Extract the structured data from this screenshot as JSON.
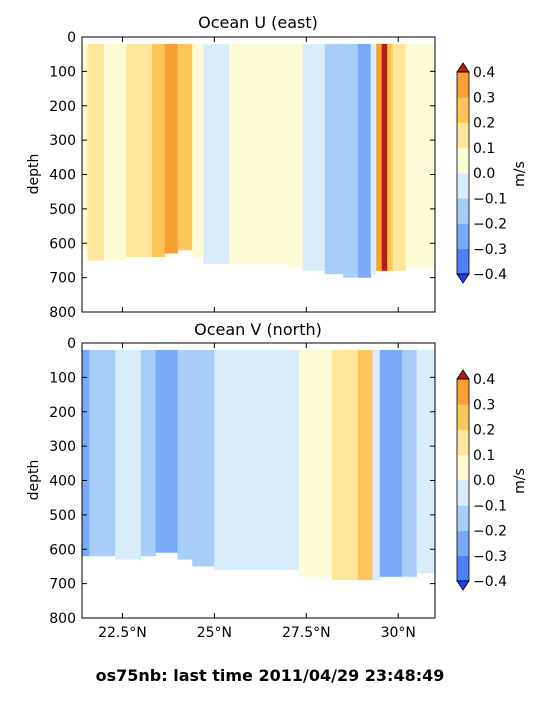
{
  "figure": {
    "suptitle": "os75nb: last time 2011/04/29 23:48:49"
  },
  "colorbar": {
    "label": "m/s",
    "levels": [
      -0.4,
      -0.3,
      -0.2,
      -0.1,
      0.0,
      0.1,
      0.2,
      0.3,
      0.4
    ],
    "tick_labels": [
      "−0.4",
      "−0.3",
      "−0.2",
      "−0.1",
      "0.0",
      "0.1",
      "0.2",
      "0.3",
      "0.4"
    ],
    "colors": [
      "#2a3cf0",
      "#4f7ff7",
      "#7aaaf7",
      "#a8cdf8",
      "#d8ecfb",
      "#fdfbd6",
      "#fde79a",
      "#fdc65a",
      "#f9a035",
      "#ed6221",
      "#b81e0e"
    ],
    "extend": "both"
  },
  "chart_data": [
    {
      "type": "heatmap",
      "title": "Ocean U (east)",
      "xlabel": "",
      "ylabel": "depth",
      "xlim": [
        21.4,
        31.0
      ],
      "ylim": [
        800,
        0
      ],
      "x_ticks": [
        22.5,
        25.0,
        27.5,
        30.0
      ],
      "x_tick_labels": [
        "",
        "",
        "",
        ""
      ],
      "y_ticks": [
        0,
        100,
        200,
        300,
        400,
        500,
        600,
        700,
        800
      ],
      "y_tick_labels": [
        "0",
        "100",
        "200",
        "300",
        "400",
        "500",
        "600",
        "700",
        "800"
      ],
      "units": "m/s",
      "segments": [
        {
          "x": [
            21.4,
            21.55
          ],
          "value": 0.05,
          "max_depth": 620
        },
        {
          "x": [
            21.55,
            22.0
          ],
          "value": 0.13,
          "max_depth": 650
        },
        {
          "x": [
            22.0,
            22.6
          ],
          "value": 0.08,
          "max_depth": 650
        },
        {
          "x": [
            22.6,
            23.3
          ],
          "value": 0.18,
          "max_depth": 640
        },
        {
          "x": [
            23.3,
            23.65
          ],
          "value": 0.26,
          "max_depth": 640
        },
        {
          "x": [
            23.65,
            24.0
          ],
          "value": 0.35,
          "max_depth": 630
        },
        {
          "x": [
            24.0,
            24.4
          ],
          "value": 0.22,
          "max_depth": 620
        },
        {
          "x": [
            24.4,
            24.7
          ],
          "value": 0.04,
          "max_depth": 640
        },
        {
          "x": [
            24.7,
            25.4
          ],
          "value": -0.04,
          "max_depth": 660
        },
        {
          "x": [
            25.4,
            26.1
          ],
          "value": 0.03,
          "max_depth": 660
        },
        {
          "x": [
            26.1,
            27.0
          ],
          "value": 0.07,
          "max_depth": 660
        },
        {
          "x": [
            27.0,
            27.4
          ],
          "value": 0.02,
          "max_depth": 670
        },
        {
          "x": [
            27.4,
            28.0
          ],
          "value": -0.04,
          "max_depth": 680
        },
        {
          "x": [
            28.0,
            28.5
          ],
          "value": -0.12,
          "max_depth": 690
        },
        {
          "x": [
            28.5,
            28.9
          ],
          "value": -0.18,
          "max_depth": 700
        },
        {
          "x": [
            28.9,
            29.25
          ],
          "value": -0.27,
          "max_depth": 700
        },
        {
          "x": [
            29.25,
            29.4
          ],
          "value": -0.05,
          "max_depth": 690
        },
        {
          "x": [
            29.4,
            29.55
          ],
          "value": 0.32,
          "max_depth": 680
        },
        {
          "x": [
            29.55,
            29.7
          ],
          "value": 0.42,
          "max_depth": 680
        },
        {
          "x": [
            29.7,
            29.85
          ],
          "value": 0.26,
          "max_depth": 680
        },
        {
          "x": [
            29.85,
            30.2
          ],
          "value": 0.15,
          "max_depth": 680
        },
        {
          "x": [
            30.2,
            31.0
          ],
          "value": 0.06,
          "max_depth": 670
        }
      ]
    },
    {
      "type": "heatmap",
      "title": "Ocean V (north)",
      "xlabel": "",
      "ylabel": "depth",
      "xlim": [
        21.4,
        31.0
      ],
      "ylim": [
        800,
        0
      ],
      "x_ticks": [
        22.5,
        25.0,
        27.5,
        30.0
      ],
      "x_tick_labels": [
        "22.5°N",
        "25°N",
        "27.5°N",
        "30°N"
      ],
      "y_ticks": [
        0,
        100,
        200,
        300,
        400,
        500,
        600,
        700,
        800
      ],
      "y_tick_labels": [
        "0",
        "100",
        "200",
        "300",
        "400",
        "500",
        "600",
        "700",
        "800"
      ],
      "units": "m/s",
      "segments": [
        {
          "x": [
            21.4,
            21.6
          ],
          "value": -0.22,
          "max_depth": 620
        },
        {
          "x": [
            21.6,
            22.3
          ],
          "value": -0.12,
          "max_depth": 620
        },
        {
          "x": [
            22.3,
            23.0
          ],
          "value": -0.08,
          "max_depth": 630
        },
        {
          "x": [
            23.0,
            23.4
          ],
          "value": -0.17,
          "max_depth": 620
        },
        {
          "x": [
            23.4,
            24.0
          ],
          "value": -0.25,
          "max_depth": 610
        },
        {
          "x": [
            24.0,
            24.4
          ],
          "value": -0.18,
          "max_depth": 630
        },
        {
          "x": [
            24.4,
            25.0
          ],
          "value": -0.11,
          "max_depth": 650
        },
        {
          "x": [
            25.0,
            26.0
          ],
          "value": -0.06,
          "max_depth": 660
        },
        {
          "x": [
            26.0,
            27.3
          ],
          "value": -0.03,
          "max_depth": 660
        },
        {
          "x": [
            27.3,
            28.2
          ],
          "value": 0.05,
          "max_depth": 680
        },
        {
          "x": [
            28.2,
            28.9
          ],
          "value": 0.14,
          "max_depth": 690
        },
        {
          "x": [
            28.9,
            29.3
          ],
          "value": 0.22,
          "max_depth": 690
        },
        {
          "x": [
            29.3,
            29.5
          ],
          "value": -0.08,
          "max_depth": 690
        },
        {
          "x": [
            29.5,
            30.1
          ],
          "value": -0.22,
          "max_depth": 680
        },
        {
          "x": [
            30.1,
            30.5
          ],
          "value": -0.14,
          "max_depth": 680
        },
        {
          "x": [
            30.5,
            31.0
          ],
          "value": -0.06,
          "max_depth": 670
        }
      ]
    }
  ]
}
